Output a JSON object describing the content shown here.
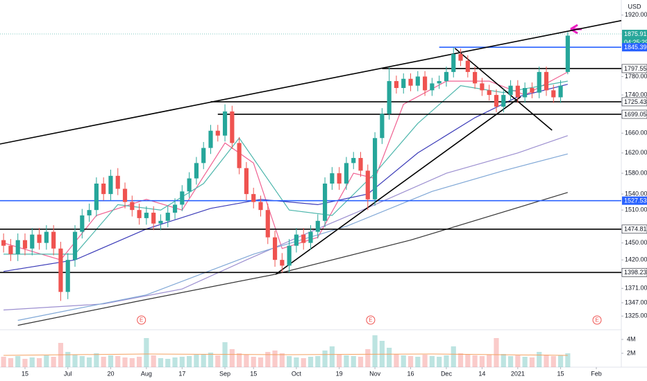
{
  "chart_data": {
    "type": "candlestick",
    "currency": "USD",
    "countdown": "04:25:29",
    "log_scale": true,
    "up_color": "#26a69a",
    "down_color": "#ef5350",
    "xlim": [
      -0.5,
      86.5
    ],
    "ylim": [
      1304,
      1956
    ],
    "xticks": [
      {
        "value": 3,
        "label": "15"
      },
      {
        "value": 9,
        "label": "Jul"
      },
      {
        "value": 15,
        "label": "20"
      },
      {
        "value": 20,
        "label": "Aug"
      },
      {
        "value": 25,
        "label": "17"
      },
      {
        "value": 31,
        "label": "Sep"
      },
      {
        "value": 35,
        "label": "15"
      },
      {
        "value": 41,
        "label": "Oct"
      },
      {
        "value": 47,
        "label": "19"
      },
      {
        "value": 52,
        "label": "Nov"
      },
      {
        "value": 57,
        "label": "16"
      },
      {
        "value": 62,
        "label": "Dec"
      },
      {
        "value": 67,
        "label": "14"
      },
      {
        "value": 72,
        "label": "2021"
      },
      {
        "value": 78,
        "label": "15"
      },
      {
        "value": 83,
        "label": "Feb"
      }
    ],
    "yticks": [
      {
        "value": 1920,
        "label": "1920.00"
      },
      {
        "value": 1780,
        "label": "1780.00"
      },
      {
        "value": 1740,
        "label": "1740.00"
      },
      {
        "value": 1660,
        "label": "1660.00"
      },
      {
        "value": 1620,
        "label": "1620.00"
      },
      {
        "value": 1580,
        "label": "1580.00"
      },
      {
        "value": 1540,
        "label": "1540.00"
      },
      {
        "value": 1510,
        "label": "1510.00"
      },
      {
        "value": 1450,
        "label": "1450.00"
      },
      {
        "value": 1420,
        "label": "1420.00"
      },
      {
        "value": 1371,
        "label": "1371.00"
      },
      {
        "value": 1347,
        "label": "1347.00"
      },
      {
        "value": 1325,
        "label": "1325.00"
      }
    ],
    "candles": {
      "open": [
        1455,
        1445,
        1430,
        1455,
        1440,
        1465,
        1450,
        1470,
        1440,
        1365,
        1420,
        1470,
        1500,
        1510,
        1560,
        1540,
        1575,
        1550,
        1525,
        1510,
        1495,
        1505,
        1485,
        1490,
        1505,
        1520,
        1545,
        1570,
        1600,
        1630,
        1665,
        1655,
        1705,
        1640,
        1590,
        1540,
        1525,
        1510,
        1460,
        1420,
        1410,
        1445,
        1465,
        1450,
        1470,
        1490,
        1560,
        1580,
        1560,
        1600,
        1610,
        1585,
        1530,
        1650,
        1700,
        1770,
        1755,
        1775,
        1760,
        1780,
        1750,
        1765,
        1770,
        1790,
        1830,
        1815,
        1790,
        1765,
        1750,
        1740,
        1715,
        1740,
        1760,
        1735,
        1755,
        1745,
        1790,
        1750,
        1735,
        1790
      ],
      "high": [
        1467,
        1457,
        1467,
        1467,
        1477,
        1477,
        1482,
        1482,
        1452,
        1432,
        1482,
        1512,
        1522,
        1572,
        1572,
        1587,
        1590,
        1562,
        1537,
        1522,
        1517,
        1517,
        1502,
        1517,
        1532,
        1557,
        1582,
        1612,
        1642,
        1677,
        1677,
        1720,
        1717,
        1652,
        1602,
        1552,
        1537,
        1522,
        1472,
        1432,
        1457,
        1477,
        1477,
        1482,
        1502,
        1572,
        1592,
        1592,
        1612,
        1622,
        1622,
        1597,
        1662,
        1712,
        1800,
        1782,
        1787,
        1787,
        1792,
        1792,
        1777,
        1782,
        1802,
        1845,
        1842,
        1827,
        1802,
        1777,
        1762,
        1752,
        1752,
        1772,
        1772,
        1767,
        1767,
        1802,
        1802,
        1762,
        1772,
        1880
      ],
      "low": [
        1433,
        1418,
        1418,
        1428,
        1428,
        1438,
        1438,
        1428,
        1350,
        1353,
        1408,
        1458,
        1488,
        1498,
        1528,
        1528,
        1538,
        1513,
        1498,
        1483,
        1483,
        1473,
        1473,
        1478,
        1493,
        1508,
        1533,
        1558,
        1588,
        1618,
        1643,
        1643,
        1628,
        1578,
        1528,
        1513,
        1498,
        1448,
        1408,
        1398,
        1398,
        1433,
        1438,
        1438,
        1458,
        1478,
        1548,
        1548,
        1548,
        1588,
        1573,
        1510,
        1518,
        1638,
        1688,
        1743,
        1743,
        1748,
        1748,
        1738,
        1738,
        1753,
        1758,
        1778,
        1803,
        1778,
        1753,
        1738,
        1728,
        1703,
        1703,
        1728,
        1723,
        1723,
        1733,
        1733,
        1738,
        1723,
        1723,
        1785
      ],
      "close": [
        1445,
        1430,
        1455,
        1440,
        1465,
        1450,
        1470,
        1440,
        1365,
        1420,
        1470,
        1500,
        1510,
        1560,
        1540,
        1575,
        1550,
        1525,
        1510,
        1495,
        1505,
        1485,
        1490,
        1505,
        1520,
        1545,
        1570,
        1600,
        1630,
        1665,
        1655,
        1705,
        1640,
        1590,
        1540,
        1525,
        1510,
        1460,
        1420,
        1410,
        1445,
        1465,
        1450,
        1470,
        1490,
        1560,
        1580,
        1560,
        1600,
        1610,
        1585,
        1530,
        1650,
        1700,
        1770,
        1755,
        1775,
        1760,
        1780,
        1750,
        1765,
        1770,
        1790,
        1830,
        1815,
        1790,
        1765,
        1750,
        1740,
        1715,
        1740,
        1760,
        1735,
        1755,
        1745,
        1790,
        1750,
        1735,
        1760,
        1872
      ]
    },
    "moving_averages": [
      {
        "color": "#f06292",
        "x": [
          0,
          8,
          13,
          20,
          25,
          31,
          35,
          39,
          44,
          49,
          52,
          56,
          62,
          68,
          73,
          79
        ],
        "values": [
          1450,
          1420,
          1500,
          1530,
          1510,
          1640,
          1600,
          1440,
          1460,
          1580,
          1570,
          1720,
          1770,
          1770,
          1740,
          1790
        ]
      },
      {
        "color": "#4db6ac",
        "x": [
          0,
          10,
          16,
          22,
          28,
          33,
          40,
          46,
          52,
          58,
          64,
          70,
          79
        ],
        "values": [
          1430,
          1430,
          1520,
          1510,
          1560,
          1650,
          1510,
          1500,
          1580,
          1680,
          1760,
          1745,
          1770
        ]
      },
      {
        "color": "#3b3bb8",
        "x": [
          0,
          10,
          20,
          29,
          36,
          44,
          51,
          58,
          66,
          72,
          79
        ],
        "values": [
          1400,
          1420,
          1475,
          1513,
          1530,
          1520,
          1540,
          1620,
          1692,
          1736,
          1763
        ]
      },
      {
        "color": "#9c8fd0",
        "x": [
          0,
          14,
          25,
          34,
          43,
          52,
          62,
          72,
          79
        ],
        "values": [
          1335,
          1345,
          1370,
          1420,
          1470,
          1520,
          1580,
          1620,
          1655
        ]
      },
      {
        "color": "#7fa7d6",
        "x": [
          2,
          20,
          35,
          48,
          60,
          70,
          79
        ],
        "values": [
          1318,
          1360,
          1430,
          1480,
          1545,
          1585,
          1618
        ]
      },
      {
        "color": "#333333",
        "x": [
          2,
          19,
          38,
          57,
          79
        ],
        "values": [
          1310,
          1350,
          1395,
          1455,
          1543
        ]
      }
    ],
    "trend_lines": [
      {
        "color": "#000000",
        "x": [
          -0.5,
          86.5
        ],
        "values": [
          1638,
          1907
        ]
      },
      {
        "color": "#000000",
        "x": [
          38.1,
          72.4
        ],
        "values": [
          1395,
          1736
        ]
      },
      {
        "color": "#000000",
        "x": [
          63.2,
          76.8
        ],
        "values": [
          1843,
          1666
        ]
      }
    ],
    "levels": [
      {
        "value": 1875.91,
        "color": "#26a69a",
        "style": "dotted"
      },
      {
        "value": 1845.39,
        "color": "#2962ff",
        "from": 61
      },
      {
        "value": 1797.55,
        "color": "#000000",
        "from": 53
      },
      {
        "value": 1725.43,
        "color": "#000000",
        "from": 29
      },
      {
        "value": 1699.05,
        "color": "#000000",
        "from": 30
      },
      {
        "value": 1527.53,
        "color": "#2962ff"
      },
      {
        "value": 1474.81,
        "color": "#000000"
      },
      {
        "value": 1398.23,
        "color": "#000000"
      }
    ],
    "events": [
      {
        "x": 19.3,
        "label": "E"
      },
      {
        "x": 51.4,
        "label": "E"
      },
      {
        "x": 83.1,
        "label": "E"
      }
    ],
    "volume": {
      "vlim": [
        0,
        5000000
      ],
      "ticks": [
        {
          "value": 4000000,
          "label": "4M"
        },
        {
          "value": 2000000,
          "label": "2M"
        }
      ],
      "values": [
        1500000,
        1300000,
        1600000,
        1200000,
        1400000,
        1300000,
        1700000,
        1500000,
        3500000,
        2200000,
        1800000,
        1600000,
        1400000,
        2000000,
        1500000,
        1700000,
        1600000,
        1400000,
        1300000,
        1500000,
        4200000,
        1700000,
        1300000,
        1200000,
        1400000,
        1500000,
        1600000,
        1800000,
        1900000,
        2100000,
        1700000,
        3600000,
        2600000,
        2000000,
        1800000,
        1500000,
        1400000,
        2200000,
        2400000,
        2000000,
        1600000,
        1400000,
        1300000,
        1500000,
        1600000,
        2400000,
        3000000,
        1800000,
        1700000,
        1600000,
        1500000,
        2600000,
        4600000,
        3800000,
        2800000,
        1900000,
        1700000,
        1600000,
        1500000,
        1800000,
        1600000,
        1500000,
        1700000,
        3000000,
        2000000,
        1800000,
        1700000,
        1600000,
        1800000,
        4200000,
        1900000,
        1600000,
        1700000,
        1500000,
        1400000,
        2200000,
        1800000,
        1600000,
        1700000,
        2000000
      ],
      "average": {
        "color": "#f4a261",
        "x": [
          0,
          20,
          40,
          60,
          79
        ],
        "values": [
          1700000,
          1900000,
          1800000,
          1900000,
          1700000
        ]
      }
    }
  }
}
